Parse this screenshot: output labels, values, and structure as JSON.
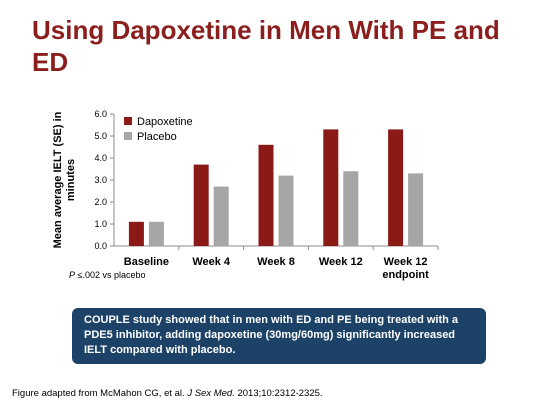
{
  "slide": {
    "title": "Using Dapoxetine in Men With PE and ED",
    "footnote_prefix": "P",
    "footnote_rest": " ≤.002 vs placebo",
    "callout": "COUPLE study showed that in men with ED and PE being treated with a PDE5 inhibitor, adding dapoxetine (30mg/60mg) significantly increased IELT compared with placebo.",
    "source_prefix": "Figure adapted from McMahon CG, et al. ",
    "source_journal": "J Sex Med.",
    "source_rest": " 2013;10:2312-2325."
  },
  "chart_data": {
    "type": "bar",
    "title": "",
    "xlabel": "",
    "ylabel_lines": [
      "Mean average IELT (SE) in",
      "minutes"
    ],
    "ylim": [
      0,
      6
    ],
    "yticks": [
      "0.0",
      "1.0",
      "2.0",
      "3.0",
      "4.0",
      "5.0",
      "6.0"
    ],
    "categories": [
      [
        "Baseline"
      ],
      [
        "Week 4"
      ],
      [
        "Week 8"
      ],
      [
        "Week 12"
      ],
      [
        "Week 12",
        "endpoint"
      ]
    ],
    "series": [
      {
        "name": "Dapoxetine",
        "color": "#8b1a17",
        "values": [
          1.1,
          3.7,
          4.6,
          5.3,
          5.3
        ]
      },
      {
        "name": "Placebo",
        "color": "#a6a6a6",
        "values": [
          1.1,
          2.7,
          3.2,
          3.4,
          3.3
        ]
      }
    ],
    "legend": "top-left",
    "grid": false
  }
}
